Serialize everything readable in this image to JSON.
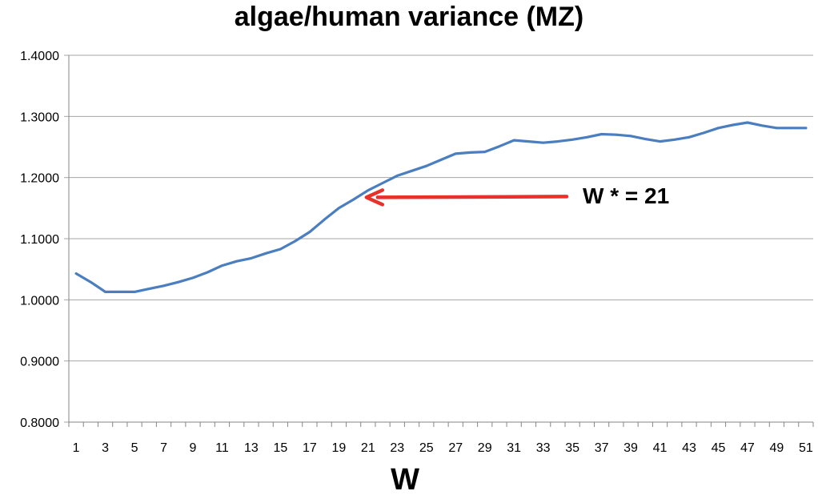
{
  "chart_data": {
    "type": "line",
    "title": "algae/human variance (MZ)",
    "xlabel": "W",
    "ylabel": "",
    "ylim": [
      0.8,
      1.4
    ],
    "yticks": [
      "0.8000",
      "0.9000",
      "1.0000",
      "1.1000",
      "1.2000",
      "1.3000",
      "1.4000"
    ],
    "xtick_labels": [
      "1",
      "3",
      "5",
      "7",
      "9",
      "11",
      "13",
      "15",
      "17",
      "19",
      "21",
      "23",
      "25",
      "27",
      "29",
      "31",
      "33",
      "35",
      "37",
      "39",
      "41",
      "43",
      "45",
      "47",
      "49",
      "51"
    ],
    "x": [
      1,
      2,
      3,
      4,
      5,
      6,
      7,
      8,
      9,
      10,
      11,
      12,
      13,
      14,
      15,
      16,
      17,
      18,
      19,
      20,
      21,
      22,
      23,
      24,
      25,
      26,
      27,
      28,
      29,
      30,
      31,
      32,
      33,
      34,
      35,
      36,
      37,
      38,
      39,
      40,
      41,
      42,
      43,
      44,
      45,
      46,
      47,
      48,
      49,
      50,
      51
    ],
    "series": [
      {
        "color": "#4a7ebf",
        "values": [
          1.043,
          1.029,
          1.013,
          1.013,
          1.013,
          1.018,
          1.023,
          1.029,
          1.036,
          1.045,
          1.056,
          1.063,
          1.068,
          1.076,
          1.083,
          1.096,
          1.111,
          1.131,
          1.15,
          1.164,
          1.179,
          1.191,
          1.203,
          1.211,
          1.219,
          1.229,
          1.239,
          1.241,
          1.242,
          1.251,
          1.261,
          1.259,
          1.257,
          1.259,
          1.262,
          1.266,
          1.271,
          1.27,
          1.268,
          1.263,
          1.259,
          1.262,
          1.266,
          1.273,
          1.281,
          1.286,
          1.29,
          1.285,
          1.281,
          1.281,
          1.281
        ]
      }
    ],
    "grid": "horizontal",
    "legend": "none",
    "annotation": {
      "text": "W * = 21",
      "arrow_color": "#e8312a",
      "target_x": 21,
      "target_y": 1.165
    }
  }
}
